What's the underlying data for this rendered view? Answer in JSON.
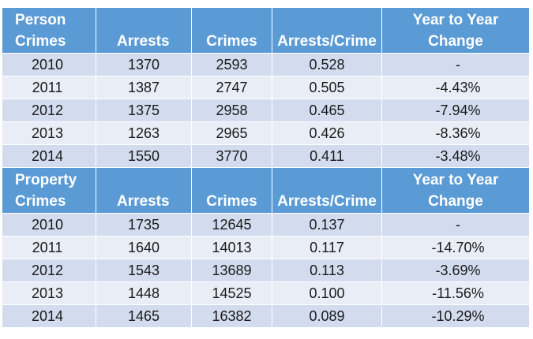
{
  "columns": {
    "arrests": "Arrests",
    "crimes": "Crimes",
    "ratio": "Arrests/Crime",
    "change_line1": "Year to Year",
    "change_line2": "Change"
  },
  "person": {
    "title_line1": "Person",
    "title_line2": "Crimes",
    "rows": [
      {
        "year": "2010",
        "arrests": "1370",
        "crimes": "2593",
        "ratio": "0.528",
        "change": "-"
      },
      {
        "year": "2011",
        "arrests": "1387",
        "crimes": "2747",
        "ratio": "0.505",
        "change": "-4.43%"
      },
      {
        "year": "2012",
        "arrests": "1375",
        "crimes": "2958",
        "ratio": "0.465",
        "change": "-7.94%"
      },
      {
        "year": "2013",
        "arrests": "1263",
        "crimes": "2965",
        "ratio": "0.426",
        "change": "-8.36%"
      },
      {
        "year": "2014",
        "arrests": "1550",
        "crimes": "3770",
        "ratio": "0.411",
        "change": "-3.48%"
      }
    ]
  },
  "property": {
    "title_line1": "Property",
    "title_line2": "Crimes",
    "rows": [
      {
        "year": "2010",
        "arrests": "1735",
        "crimes": "12645",
        "ratio": "0.137",
        "change": "-"
      },
      {
        "year": "2011",
        "arrests": "1640",
        "crimes": "14013",
        "ratio": "0.117",
        "change": "-14.70%"
      },
      {
        "year": "2012",
        "arrests": "1543",
        "crimes": "13689",
        "ratio": "0.113",
        "change": "-3.69%"
      },
      {
        "year": "2013",
        "arrests": "1448",
        "crimes": "14525",
        "ratio": "0.100",
        "change": "-11.56%"
      },
      {
        "year": "2014",
        "arrests": "1465",
        "crimes": "16382",
        "ratio": "0.089",
        "change": "-10.29%"
      }
    ]
  }
}
